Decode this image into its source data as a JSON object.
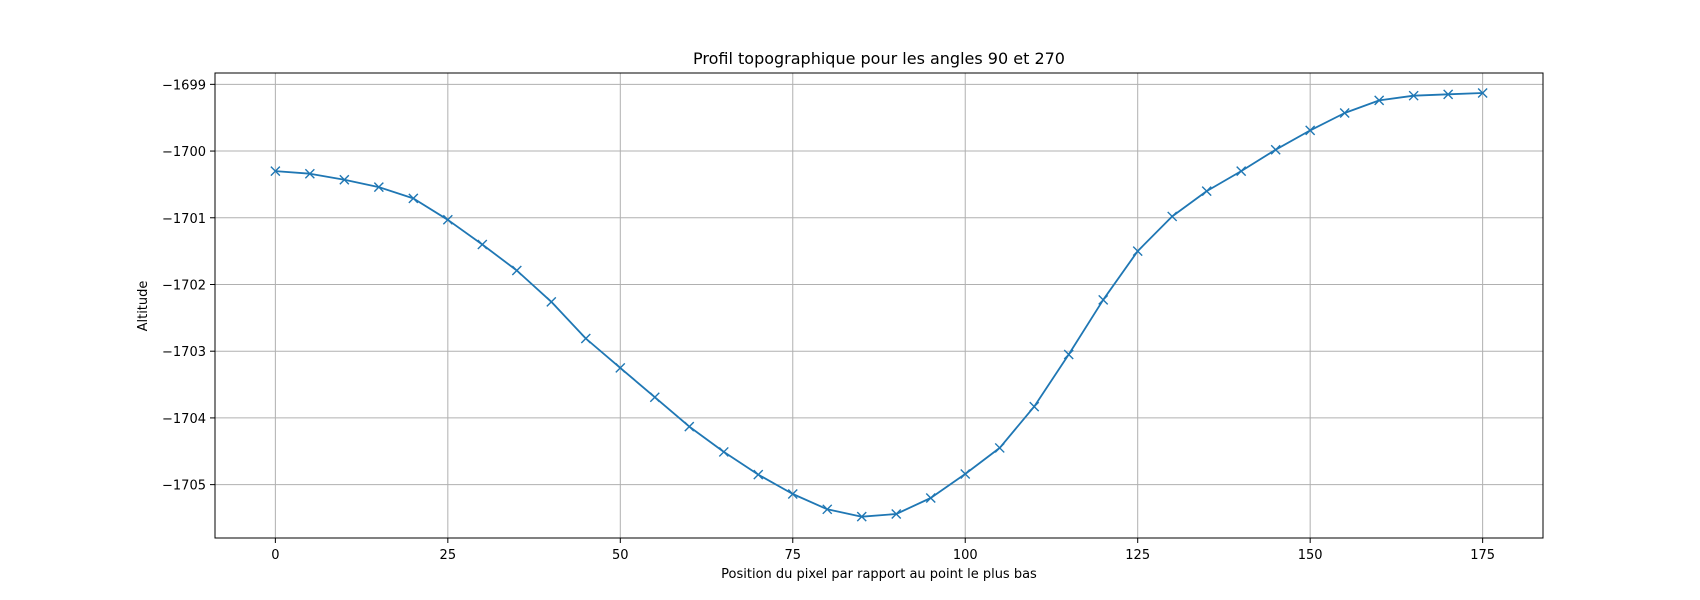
{
  "chart_data": {
    "type": "line",
    "title": "Profil topographique pour les angles 90 et 270",
    "xlabel": "Position du pixel par rapport au point le plus bas",
    "ylabel": "Altitude",
    "xlim": [
      -8.75,
      183.75
    ],
    "ylim": [
      -1705.8,
      -1698.83
    ],
    "x_ticks": [
      0,
      25,
      50,
      75,
      100,
      125,
      150,
      175
    ],
    "y_ticks": [
      -1705,
      -1704,
      -1703,
      -1702,
      -1701,
      -1700,
      -1699
    ],
    "y_tick_labels": [
      "−1705",
      "−1704",
      "−1703",
      "−1702",
      "−1701",
      "−1700",
      "−1699"
    ],
    "grid": true,
    "legend": "none",
    "series": [
      {
        "color": "#1f77b4",
        "marker": "x",
        "x": [
          0,
          5,
          10,
          15,
          20,
          25,
          30,
          35,
          40,
          45,
          50,
          55,
          60,
          65,
          70,
          75,
          80,
          85,
          90,
          95,
          100,
          105,
          110,
          115,
          120,
          125,
          130,
          135,
          140,
          145,
          150,
          155,
          160,
          165,
          170,
          175
        ],
        "y": [
          -1700.3,
          -1700.34,
          -1700.43,
          -1700.54,
          -1700.71,
          -1701.03,
          -1701.4,
          -1701.79,
          -1702.26,
          -1702.81,
          -1703.25,
          -1703.69,
          -1704.13,
          -1704.51,
          -1704.85,
          -1705.14,
          -1705.37,
          -1705.48,
          -1705.44,
          -1705.2,
          -1704.84,
          -1704.45,
          -1703.83,
          -1703.05,
          -1702.23,
          -1701.5,
          -1700.98,
          -1700.6,
          -1700.3,
          -1699.98,
          -1699.69,
          -1699.43,
          -1699.24,
          -1699.17,
          -1699.15,
          -1699.13
        ]
      }
    ]
  }
}
